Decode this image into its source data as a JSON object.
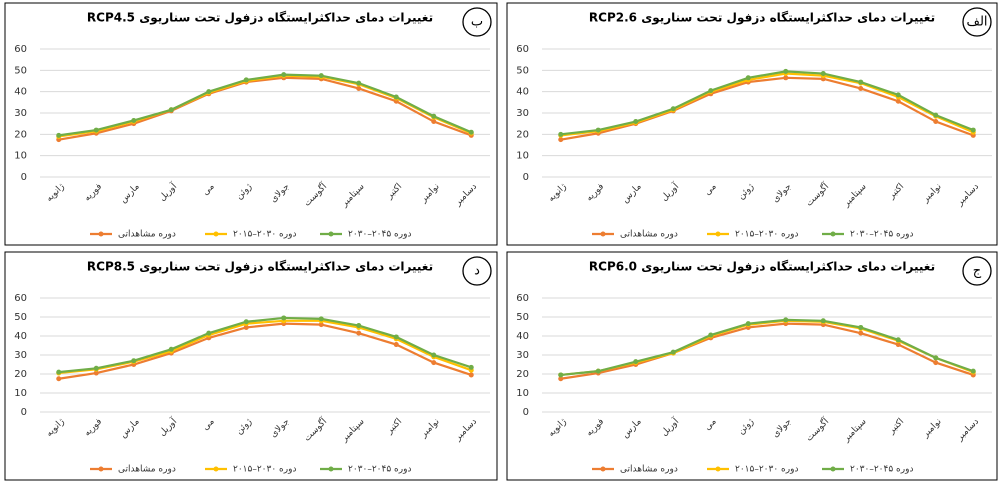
{
  "chart_data": [
    {
      "type": "line",
      "label": "الف",
      "title": "تغییرات دمای حداکثرایستگاه دزفول تحت سناریوی RCP2.6",
      "categories": [
        "ژانویه",
        "فوریه",
        "مارس",
        "آوریل",
        "می",
        "ژوئن",
        "جولای",
        "آگوست",
        "سپتامبر",
        "اکتبر",
        "نوامبر",
        "دسامبر"
      ],
      "series": [
        {
          "name": "دوره مشاهداتی",
          "color": "#ed7d31",
          "values": [
            17.5,
            20.5,
            25,
            31,
            39,
            44.5,
            46.5,
            46,
            41.5,
            35.5,
            26,
            19.5
          ]
        },
        {
          "name": "دوره ۲۰۳۰–۲۰۱۵",
          "color": "#ffc000",
          "values": [
            19.5,
            21.5,
            25.5,
            31.5,
            40,
            45.5,
            48.5,
            47.5,
            44,
            37.5,
            28.5,
            21
          ]
        },
        {
          "name": "دوره ۲۰۴۵–۲۰۳۰",
          "color": "#70ad47",
          "values": [
            20,
            22,
            26,
            32,
            40.5,
            46.5,
            49.5,
            48.5,
            44.5,
            38.5,
            29,
            22
          ]
        }
      ],
      "ylim": [
        0,
        60
      ],
      "yticks": [
        0,
        10,
        20,
        30,
        40,
        50,
        60
      ],
      "grid": true
    },
    {
      "type": "line",
      "label": "ب",
      "title": "تغییرات دمای حداکثرایستگاه دزفول تحت سناریوی RCP4.5",
      "categories": [
        "ژانویه",
        "فوریه",
        "مارس",
        "آوریل",
        "می",
        "ژوئن",
        "جولای",
        "آگوست",
        "سپتامبر",
        "اکتبر",
        "نوامبر",
        "دسامبر"
      ],
      "series": [
        {
          "name": "دوره مشاهداتی",
          "color": "#ed7d31",
          "values": [
            17.5,
            20.5,
            25,
            31,
            39,
            44.5,
            46.5,
            46,
            41.5,
            35.5,
            26,
            19.5
          ]
        },
        {
          "name": "دوره ۲۰۳۰–۲۰۱۵",
          "color": "#ffc000",
          "values": [
            19,
            21.5,
            26,
            31.5,
            39.5,
            45,
            47.5,
            47,
            43.5,
            37,
            28,
            20.5
          ]
        },
        {
          "name": "دوره ۲۰۴۵–۲۰۳۰",
          "color": "#70ad47",
          "values": [
            19.5,
            22,
            26.5,
            31.5,
            40,
            45.5,
            48,
            47.5,
            44,
            37.5,
            28.5,
            21
          ]
        }
      ],
      "ylim": [
        0,
        60
      ],
      "yticks": [
        0,
        10,
        20,
        30,
        40,
        50,
        60
      ],
      "grid": true
    },
    {
      "type": "line",
      "label": "ج",
      "title": "تغییرات دمای حداکثرایستگاه دزفول تحت سناریوی RCP6.0",
      "categories": [
        "ژانویه",
        "فوریه",
        "مارس",
        "آوریل",
        "می",
        "ژوئن",
        "جولای",
        "آگوست",
        "سپتامبر",
        "اکتبر",
        "نوامبر",
        "دسامبر"
      ],
      "series": [
        {
          "name": "دوره مشاهداتی",
          "color": "#ed7d31",
          "values": [
            17.5,
            20.5,
            25,
            31,
            39,
            44.5,
            46.5,
            46,
            41.5,
            35.5,
            26,
            19.5
          ]
        },
        {
          "name": "دوره ۲۰۳۰–۲۰۱۵",
          "color": "#ffc000",
          "values": [
            19.5,
            21.5,
            26,
            31,
            40,
            46,
            48,
            47.5,
            44,
            37.5,
            28.5,
            21
          ]
        },
        {
          "name": "دوره ۲۰۴۵–۲۰۳۰",
          "color": "#70ad47",
          "values": [
            19.5,
            21.5,
            26.5,
            31.5,
            40.5,
            46.5,
            48.5,
            48,
            44.5,
            38,
            28.5,
            21.5
          ]
        }
      ],
      "ylim": [
        0,
        60
      ],
      "yticks": [
        0,
        10,
        20,
        30,
        40,
        50,
        60
      ],
      "grid": true
    },
    {
      "type": "line",
      "label": "د",
      "title": "تغییرات دمای حداکثرایستگاه دزفول تحت سناریوی RCP8.5",
      "categories": [
        "ژانویه",
        "فوریه",
        "مارس",
        "آوریل",
        "می",
        "ژوئن",
        "جولای",
        "آگوست",
        "سپتامبر",
        "اکتبر",
        "نوامبر",
        "دسامبر"
      ],
      "series": [
        {
          "name": "دوره مشاهداتی",
          "color": "#ed7d31",
          "values": [
            17.5,
            20.5,
            25,
            31,
            39,
            44.5,
            46.5,
            46,
            41.5,
            35.5,
            26,
            19.5
          ]
        },
        {
          "name": "دوره ۲۰۳۰–۲۰۱۵",
          "color": "#ffc000",
          "values": [
            20.5,
            22.5,
            26.5,
            32,
            40.5,
            46.5,
            48,
            48,
            44.5,
            38.5,
            29,
            22
          ]
        },
        {
          "name": "دوره ۲۰۴۵–۲۰۳۰",
          "color": "#70ad47",
          "values": [
            21,
            23,
            27,
            33,
            41.5,
            47.5,
            49.5,
            49,
            45.5,
            39.5,
            30,
            23.5
          ]
        }
      ],
      "ylim": [
        0,
        60
      ],
      "yticks": [
        0,
        10,
        20,
        30,
        40,
        50,
        60
      ],
      "grid": true
    }
  ]
}
